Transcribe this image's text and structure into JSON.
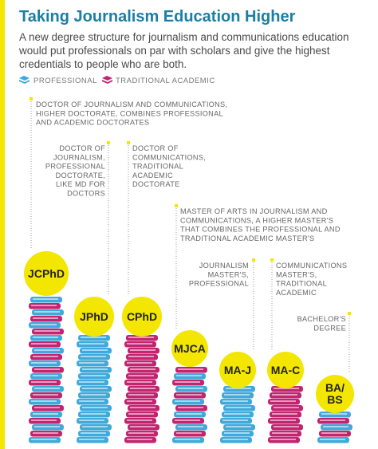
{
  "header": {
    "title": "Taking Journalism Education Higher",
    "subtitle": [
      "A new degree structure for journalism and communications education",
      "would put professionals on par with scholars and give the highest",
      "credentials to people who are both."
    ]
  },
  "legend": {
    "professional": "PROFESSIONAL",
    "academic": "TRADITIONAL ACADEMIC"
  },
  "degrees": [
    {
      "abbr": "JCPhD",
      "description": [
        "DOCTOR OF JOURNALISM AND COMMUNICATIONS,",
        "HIGHER DOCTORATE, COMBINES PROFESSIONAL",
        "AND ACADEMIC DOCTORATES"
      ]
    },
    {
      "abbr": "JPhD",
      "description": [
        "DOCTOR OF",
        "JOURNALISM,",
        "PROFESSIONAL",
        "DOCTORATE,",
        "LIKE MD FOR",
        "DOCTORS"
      ]
    },
    {
      "abbr": "CPhD",
      "description": [
        "DOCTOR OF",
        "COMMUNICATIONS,",
        "TRADITIONAL",
        "ACADEMIC",
        "DOCTORATE"
      ]
    },
    {
      "abbr": "MJCA",
      "description": [
        "MASTER OF ARTS IN JOURNALISM AND",
        "COMMUNICATIONS, A HIGHER MASTER'S",
        "THAT COMBINES THE PROFESSIONAL AND",
        "TRADITIONAL ACADEMIC MASTER'S"
      ]
    },
    {
      "abbr": "MA-J",
      "description": [
        "JOURNALISM",
        "MASTER'S,",
        "PROFESSIONAL"
      ]
    },
    {
      "abbr": "MA-C",
      "description": [
        "COMMUNICATIONS",
        "MASTER'S,",
        "TRADITIONAL",
        "ACADEMIC"
      ]
    },
    {
      "abbr": [
        "BA/",
        "BS"
      ],
      "description": [
        "BACHELOR'S",
        "DEGREE"
      ]
    }
  ]
}
